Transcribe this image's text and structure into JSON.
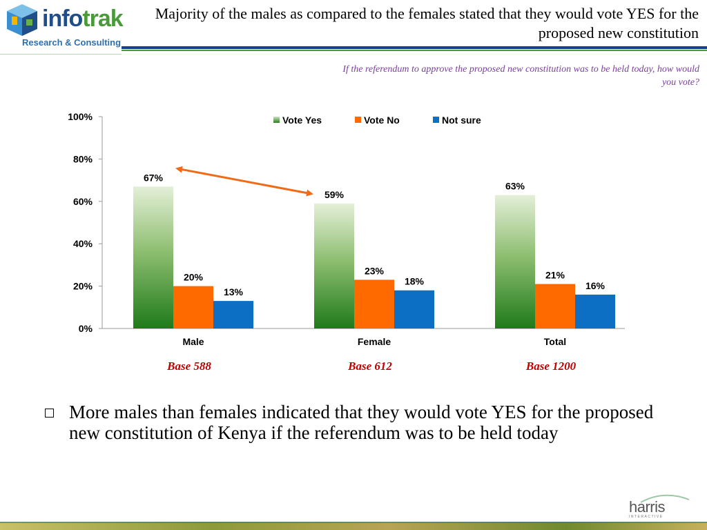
{
  "header": {
    "logo": {
      "word_info": "info",
      "word_trak": "trak",
      "subtitle": "Research & Consulting"
    },
    "title": "Majority of the males as compared to the females stated that they would vote YES for the proposed new constitution",
    "question": "If the referendum to approve the proposed new constitution was to be held today, how would you vote?"
  },
  "chart_data": {
    "type": "bar",
    "categories": [
      "Male",
      "Female",
      "Total"
    ],
    "series": [
      {
        "name": "Vote Yes",
        "values": [
          67,
          59,
          63
        ],
        "labels": [
          "67%",
          "59%",
          "63%"
        ],
        "color": "#3a8a2c"
      },
      {
        "name": "Vote No",
        "values": [
          20,
          23,
          21
        ],
        "labels": [
          "20%",
          "23%",
          "21%"
        ],
        "color": "#ff6a00"
      },
      {
        "name": "Not sure",
        "values": [
          13,
          18,
          16
        ],
        "labels": [
          "13%",
          "18%",
          "16%"
        ],
        "color": "#0d6fc4"
      }
    ],
    "ylim": [
      0,
      100
    ],
    "yticks": [
      "0%",
      "20%",
      "40%",
      "60%",
      "80%",
      "100%"
    ],
    "legend_position": "top",
    "grid": false,
    "bases": [
      "Base 588",
      "Base 612",
      "Base 1200"
    ],
    "annotation": "double-headed arrow linking Male Vote Yes (67%) and Female Vote Yes (59%)"
  },
  "bullet": {
    "text": "More males than females indicated that they would vote YES for the proposed new constitution of Kenya if the referendum was to be held today"
  },
  "footer_logo": {
    "name": "harris",
    "sub": "INTERACTIVE"
  },
  "colors": {
    "title_band_blue": "#1a3f88",
    "title_band_green": "#4a9a3a",
    "question_purple": "#7a3e9d",
    "base_red": "#c00000"
  }
}
